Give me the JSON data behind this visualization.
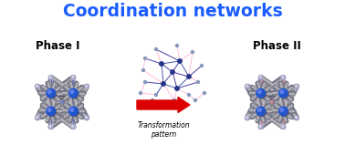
{
  "title": "Coordination networks",
  "title_color": "#1a5cff",
  "title_fontsize": 13.5,
  "phase1_label": "Phase I",
  "phase2_label": "Phase II",
  "phase_fontsize": 8.5,
  "arrow_label": "Transformation\npattern",
  "arrow_label_fontsize": 5.5,
  "arrow_color": "#dd0000",
  "background_color": "#ffffff",
  "node_color_blue": "#2255cc",
  "tube_color_light": "#aaaaaa",
  "tube_color_dark": "#555566",
  "link_color_blue": "#4466ee",
  "link_color_pink": "#ee6688",
  "small_node_dark": "#223388",
  "small_node_light": "#8899cc"
}
